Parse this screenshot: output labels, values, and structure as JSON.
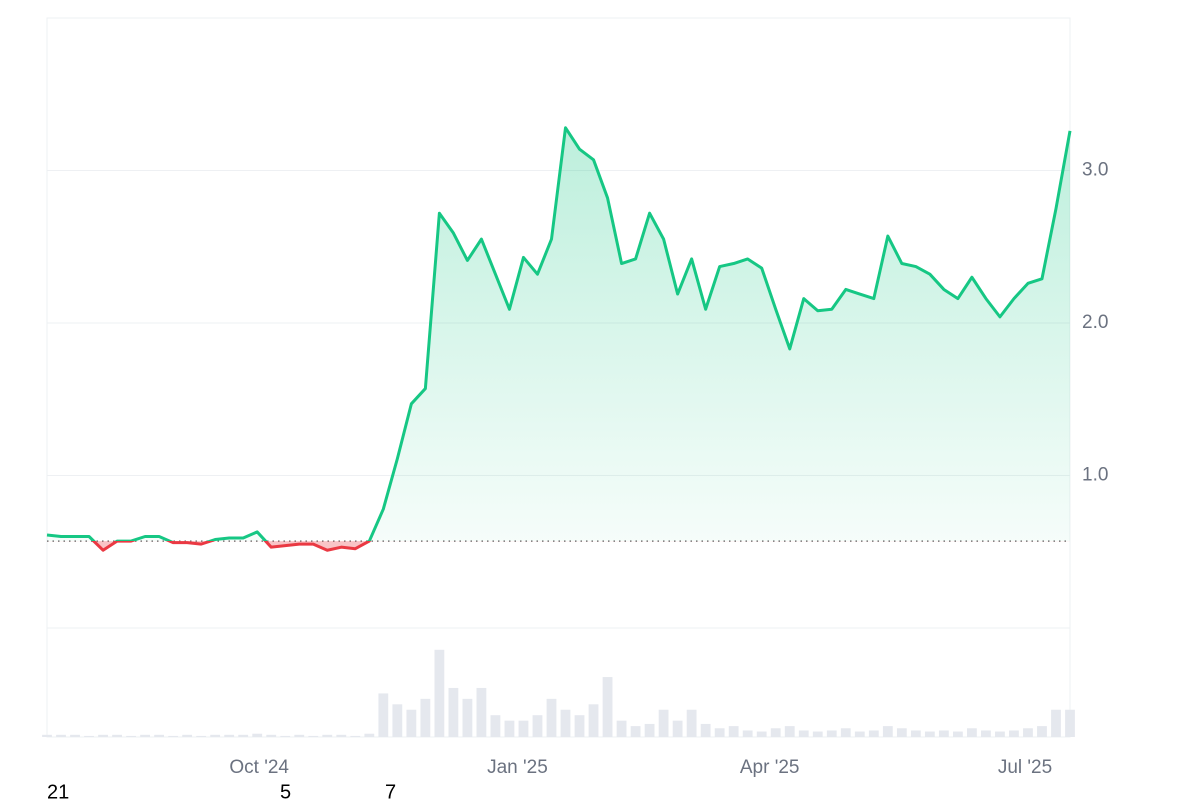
{
  "chart_data": {
    "type": "line",
    "values": [
      0.61,
      0.6,
      0.6,
      0.6,
      0.51,
      0.57,
      0.57,
      0.6,
      0.6,
      0.56,
      0.56,
      0.55,
      0.58,
      0.59,
      0.59,
      0.63,
      0.53,
      0.54,
      0.55,
      0.55,
      0.51,
      0.53,
      0.52,
      0.57,
      0.78,
      1.11,
      1.47,
      1.57,
      2.72,
      2.59,
      2.41,
      2.55,
      2.32,
      2.09,
      2.43,
      2.32,
      2.55,
      3.28,
      3.14,
      3.07,
      2.82,
      2.39,
      2.42,
      2.72,
      2.55,
      2.19,
      2.42,
      2.09,
      2.37,
      2.39,
      2.42,
      2.36,
      2.09,
      1.83,
      2.16,
      2.08,
      2.09,
      2.22,
      2.19,
      2.16,
      2.57,
      2.39,
      2.37,
      2.32,
      2.22,
      2.16,
      2.3,
      2.16,
      2.04,
      2.16,
      2.26,
      2.29,
      2.75,
      3.26
    ],
    "volume": [
      2,
      2,
      2,
      1,
      2,
      2,
      1,
      2,
      2,
      1,
      2,
      1,
      2,
      2,
      2,
      3,
      2,
      1,
      2,
      1,
      2,
      2,
      1,
      3,
      40,
      30,
      25,
      35,
      80,
      45,
      35,
      45,
      20,
      15,
      15,
      20,
      35,
      25,
      20,
      30,
      55,
      15,
      10,
      12,
      25,
      15,
      25,
      12,
      8,
      10,
      6,
      5,
      8,
      10,
      6,
      5,
      6,
      8,
      5,
      6,
      10,
      8,
      6,
      5,
      6,
      5,
      8,
      6,
      5,
      6,
      8,
      10,
      25,
      25
    ],
    "volume_ylim": [
      0,
      100
    ],
    "baseline": 0.57,
    "up_color": "#16c784",
    "down_color": "#ea3943",
    "volume_color": "#e5e8ee",
    "xlim": [
      0,
      73
    ],
    "xticks": [
      {
        "value": 15.14,
        "label": "Oct '24"
      },
      {
        "value": 33.57,
        "label": "Jan '25"
      },
      {
        "value": 51.57,
        "label": "Apr '25"
      },
      {
        "value": 69.79,
        "label": "Jul '25"
      }
    ],
    "ylim": [
      0,
      4.0
    ],
    "yticks": [
      {
        "value": 1,
        "label": "1.0"
      },
      {
        "value": 2,
        "label": "2.0"
      },
      {
        "value": 3,
        "label": "3.0"
      }
    ],
    "grid": true,
    "footer_labels": [
      "21",
      "5",
      "7"
    ]
  }
}
